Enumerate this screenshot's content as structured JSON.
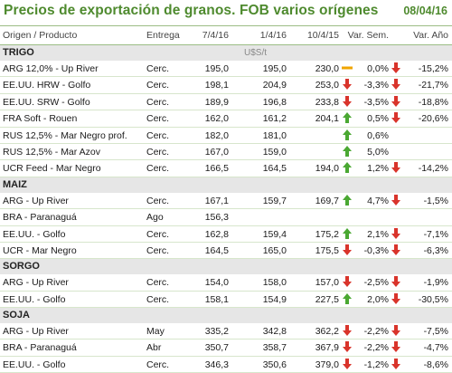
{
  "title": "Precios de exportación de granos. FOB varios orígenes",
  "date": "08/04/16",
  "headers": {
    "producto": "Origen / Producto",
    "entrega": "Entrega",
    "v1": "7/4/16",
    "v2": "1/4/16",
    "v3": "10/4/15",
    "sem": "Var. Sem.",
    "ano": "Var. Año"
  },
  "colors": {
    "up": "#4aa832",
    "down": "#d9342b",
    "flat": "#f0a500",
    "accent": "#4e8a2e"
  },
  "sections": [
    {
      "name": "TRIGO",
      "unit": "U$S/t",
      "rows": [
        {
          "producto": "ARG 12,0% - Up River",
          "entrega": "Cerc.",
          "v1": "195,0",
          "v2": "195,0",
          "v3": "230,0",
          "sem_icon": "flat",
          "sem": "0,0%",
          "ano_icon": "down",
          "ano": "-15,2%"
        },
        {
          "producto": "EE.UU. HRW - Golfo",
          "entrega": "Cerc.",
          "v1": "198,1",
          "v2": "204,9",
          "v3": "253,0",
          "sem_icon": "down",
          "sem": "-3,3%",
          "ano_icon": "down",
          "ano": "-21,7%"
        },
        {
          "producto": "EE.UU. SRW - Golfo",
          "entrega": "Cerc.",
          "v1": "189,9",
          "v2": "196,8",
          "v3": "233,8",
          "sem_icon": "down",
          "sem": "-3,5%",
          "ano_icon": "down",
          "ano": "-18,8%"
        },
        {
          "producto": "FRA Soft - Rouen",
          "entrega": "Cerc.",
          "v1": "162,0",
          "v2": "161,2",
          "v3": "204,1",
          "sem_icon": "up",
          "sem": "0,5%",
          "ano_icon": "down",
          "ano": "-20,6%"
        },
        {
          "producto": "RUS 12,5% - Mar Negro prof.",
          "entrega": "Cerc.",
          "v1": "182,0",
          "v2": "181,0",
          "v3": "",
          "sem_icon": "up",
          "sem": "0,6%",
          "ano_icon": "",
          "ano": ""
        },
        {
          "producto": "RUS 12,5% - Mar Azov",
          "entrega": "Cerc.",
          "v1": "167,0",
          "v2": "159,0",
          "v3": "",
          "sem_icon": "up",
          "sem": "5,0%",
          "ano_icon": "",
          "ano": ""
        },
        {
          "producto": "UCR Feed - Mar Negro",
          "entrega": "Cerc.",
          "v1": "166,5",
          "v2": "164,5",
          "v3": "194,0",
          "sem_icon": "up",
          "sem": "1,2%",
          "ano_icon": "down",
          "ano": "-14,2%"
        }
      ]
    },
    {
      "name": "MAIZ",
      "unit": "",
      "rows": [
        {
          "producto": "ARG - Up River",
          "entrega": "Cerc.",
          "v1": "167,1",
          "v2": "159,7",
          "v3": "169,7",
          "sem_icon": "up",
          "sem": "4,7%",
          "ano_icon": "down",
          "ano": "-1,5%"
        },
        {
          "producto": "BRA - Paranaguá",
          "entrega": "Ago",
          "v1": "156,3",
          "v2": "",
          "v3": "",
          "sem_icon": "",
          "sem": "",
          "ano_icon": "",
          "ano": ""
        },
        {
          "producto": "EE.UU. - Golfo",
          "entrega": "Cerc.",
          "v1": "162,8",
          "v2": "159,4",
          "v3": "175,2",
          "sem_icon": "up",
          "sem": "2,1%",
          "ano_icon": "down",
          "ano": "-7,1%"
        },
        {
          "producto": "UCR - Mar Negro",
          "entrega": "Cerc.",
          "v1": "164,5",
          "v2": "165,0",
          "v3": "175,5",
          "sem_icon": "down",
          "sem": "-0,3%",
          "ano_icon": "down",
          "ano": "-6,3%"
        }
      ]
    },
    {
      "name": "SORGO",
      "unit": "",
      "rows": [
        {
          "producto": "ARG - Up River",
          "entrega": "Cerc.",
          "v1": "154,0",
          "v2": "158,0",
          "v3": "157,0",
          "sem_icon": "down",
          "sem": "-2,5%",
          "ano_icon": "down",
          "ano": "-1,9%"
        },
        {
          "producto": "EE.UU. - Golfo",
          "entrega": "Cerc.",
          "v1": "158,1",
          "v2": "154,9",
          "v3": "227,5",
          "sem_icon": "up",
          "sem": "2,0%",
          "ano_icon": "down",
          "ano": "-30,5%"
        }
      ]
    },
    {
      "name": "SOJA",
      "unit": "",
      "rows": [
        {
          "producto": "ARG - Up River",
          "entrega": "May",
          "v1": "335,2",
          "v2": "342,8",
          "v3": "362,2",
          "sem_icon": "down",
          "sem": "-2,2%",
          "ano_icon": "down",
          "ano": "-7,5%"
        },
        {
          "producto": "BRA - Paranaguá",
          "entrega": "Abr",
          "v1": "350,7",
          "v2": "358,7",
          "v3": "367,9",
          "sem_icon": "down",
          "sem": "-2,2%",
          "ano_icon": "down",
          "ano": "-4,7%"
        },
        {
          "producto": "EE.UU. - Golfo",
          "entrega": "Cerc.",
          "v1": "346,3",
          "v2": "350,6",
          "v3": "379,0",
          "sem_icon": "down",
          "sem": "-1,2%",
          "ano_icon": "down",
          "ano": "-8,6%"
        }
      ]
    }
  ]
}
